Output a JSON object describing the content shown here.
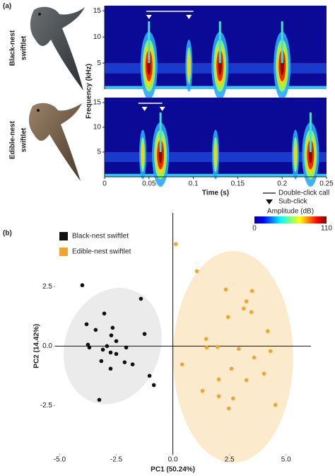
{
  "panel_labels": [
    "(a)",
    "(b)"
  ],
  "species_labels": {
    "black": [
      "Black-nest",
      "swiftlet"
    ],
    "edible": [
      "Edible-nest",
      "swiftlet"
    ],
    "edible_color": "#e8a33a"
  },
  "legend_a": {
    "line": "Double-click call",
    "marker": "Sub-click",
    "colorbar_title": "Amplitude (dB)",
    "clim": [
      0,
      110
    ],
    "cticks": [
      0,
      110
    ]
  },
  "chart_data": [
    {
      "type": "spectrogram",
      "ylabel": "Frequency (kHz)",
      "xlim": [
        0,
        0.25
      ],
      "ylim": [
        0,
        16
      ],
      "yticks": [
        5,
        10,
        15
      ],
      "pulses": [
        0.05,
        0.095,
        0.13,
        0.2
      ],
      "strong": [
        true,
        false,
        true,
        true
      ],
      "double_click": [
        0.047,
        0.1
      ],
      "sub_clicks": [
        0.05,
        0.095
      ]
    },
    {
      "type": "spectrogram",
      "xlabel": "Time (s)",
      "xlim": [
        0,
        0.25
      ],
      "ylim": [
        0,
        16
      ],
      "yticks": [
        5,
        10,
        15
      ],
      "xticks": [
        0,
        0.05,
        0.1,
        0.15,
        0.2,
        0.25
      ],
      "pulses": [
        0.043,
        0.063,
        0.125,
        0.215,
        0.232
      ],
      "strong": [
        false,
        true,
        false,
        false,
        true
      ],
      "double_click": [
        0.038,
        0.065
      ],
      "sub_clicks": [
        0.045,
        0.065
      ]
    },
    {
      "type": "scatter",
      "xlabel": "PC1 (50.24%)",
      "ylabel": "PC2 (14.42%)",
      "xlim": [
        -5.2,
        6.1
      ],
      "ylim": [
        -4.6,
        5.6
      ],
      "xticks": [
        {
          "value": -5,
          "label": "-5.0"
        },
        {
          "value": -2.5,
          "label": "-2.5"
        },
        {
          "value": 0,
          "label": "0.0"
        },
        {
          "value": 2.5,
          "label": "2.5"
        },
        {
          "value": 5,
          "label": "5.0"
        }
      ],
      "yticks": [
        {
          "value": -2.5,
          "label": "-2.5"
        },
        {
          "value": 0,
          "label": "0.0"
        },
        2.5
      ],
      "legend": "top-left",
      "series": [
        {
          "name": "Black-nest swiftlet",
          "color": "#111111",
          "ellipse": {
            "cx": -2.66,
            "cy": 0.0,
            "rx": 2.1,
            "ry": 2.5,
            "angle": 20,
            "color": "#e6e6e6"
          },
          "x": [
            -4.0,
            -1.41,
            -3.03,
            -3.81,
            -2.66,
            -3.41,
            -3.75,
            -3.69,
            -2.72,
            -2.5,
            -3.09,
            -2.91,
            -2.06,
            -2.75,
            -2.5,
            -2.13,
            -1.78,
            -3.16,
            -2.75,
            -1.03,
            -0.84,
            -1.25,
            -3.25
          ],
          "values": [
            2.56,
            1.99,
            1.37,
            0.92,
            0.77,
            0.68,
            0.06,
            -0.06,
            0.45,
            0.21,
            -0.15,
            0.0,
            -0.06,
            -0.27,
            -0.33,
            -0.68,
            -0.77,
            -0.63,
            -0.95,
            -1.25,
            -1.64,
            0.51,
            -2.26
          ]
        },
        {
          "name": "Edible-nest swiftlet",
          "color": "#f0a62e",
          "ellipse": {
            "cx": 2.66,
            "cy": -0.45,
            "rx": 2.65,
            "ry": 4.45,
            "angle": 0,
            "color": "#fbe5bf"
          },
          "x": [
            0.13,
            1.06,
            2.34,
            3.5,
            3.25,
            3.13,
            3.47,
            2.44,
            4.19,
            1.47,
            1.5,
            1.97,
            2.91,
            4.31,
            0.41,
            3.59,
            4.03,
            2.59,
            3.25,
            2.03,
            1.31,
            2.03,
            2.66,
            2.47,
            4.53
          ],
          "values": [
            4.29,
            3.15,
            2.38,
            2.32,
            1.88,
            1.58,
            1.43,
            1.22,
            0.63,
            0.3,
            -0.06,
            -0.03,
            -0.12,
            -0.21,
            -0.77,
            -0.48,
            -1.16,
            -0.95,
            -1.43,
            -1.4,
            -1.88,
            -2.11,
            -2.2,
            -2.62,
            -2.47
          ]
        }
      ]
    }
  ]
}
